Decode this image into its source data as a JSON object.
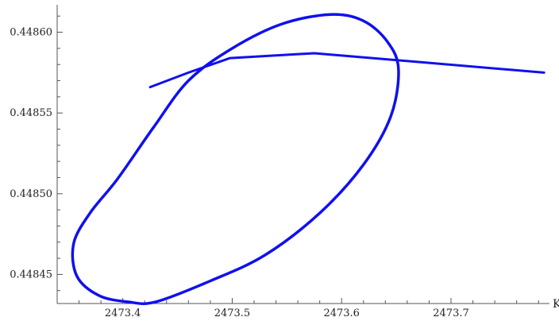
{
  "chart_data": {
    "type": "line",
    "xlabel": "K",
    "ylabel": "",
    "xlim": [
      2473.34,
      2473.79
    ],
    "ylim": [
      0.448432,
      0.448617
    ],
    "grid": false,
    "x_ticks": [
      "2473.4",
      "2473.5",
      "2473.6",
      "2473.7"
    ],
    "y_ticks": [
      "0.44845",
      "0.44850",
      "0.44855",
      "0.44860"
    ],
    "color": "#1010ee",
    "series": [
      {
        "kind": "ellipse",
        "points": [
          [
            2473.355,
            0.448469
          ],
          [
            2473.37,
            0.448488
          ],
          [
            2473.395,
            0.448509
          ],
          [
            2473.428,
            0.448541
          ],
          [
            2473.46,
            0.44857
          ],
          [
            2473.5,
            0.44859
          ],
          [
            2473.545,
            0.448605
          ],
          [
            2473.59,
            0.448611
          ],
          [
            2473.62,
            0.448607
          ],
          [
            2473.642,
            0.448594
          ],
          [
            2473.652,
            0.448577
          ],
          [
            2473.645,
            0.448548
          ],
          [
            2473.62,
            0.448518
          ],
          [
            2473.58,
            0.448488
          ],
          [
            2473.53,
            0.448462
          ],
          [
            2473.48,
            0.448446
          ],
          [
            2473.43,
            0.448433
          ],
          [
            2473.405,
            0.448433
          ],
          [
            2473.378,
            0.448437
          ],
          [
            2473.358,
            0.448449
          ],
          [
            2473.355,
            0.448469
          ]
        ]
      },
      {
        "kind": "path",
        "points": [
          [
            2473.425,
            0.448566
          ],
          [
            2473.46,
            0.448575
          ],
          [
            2473.498,
            0.448584
          ],
          [
            2473.575,
            0.448587
          ],
          [
            2473.785,
            0.448575
          ]
        ]
      }
    ]
  }
}
